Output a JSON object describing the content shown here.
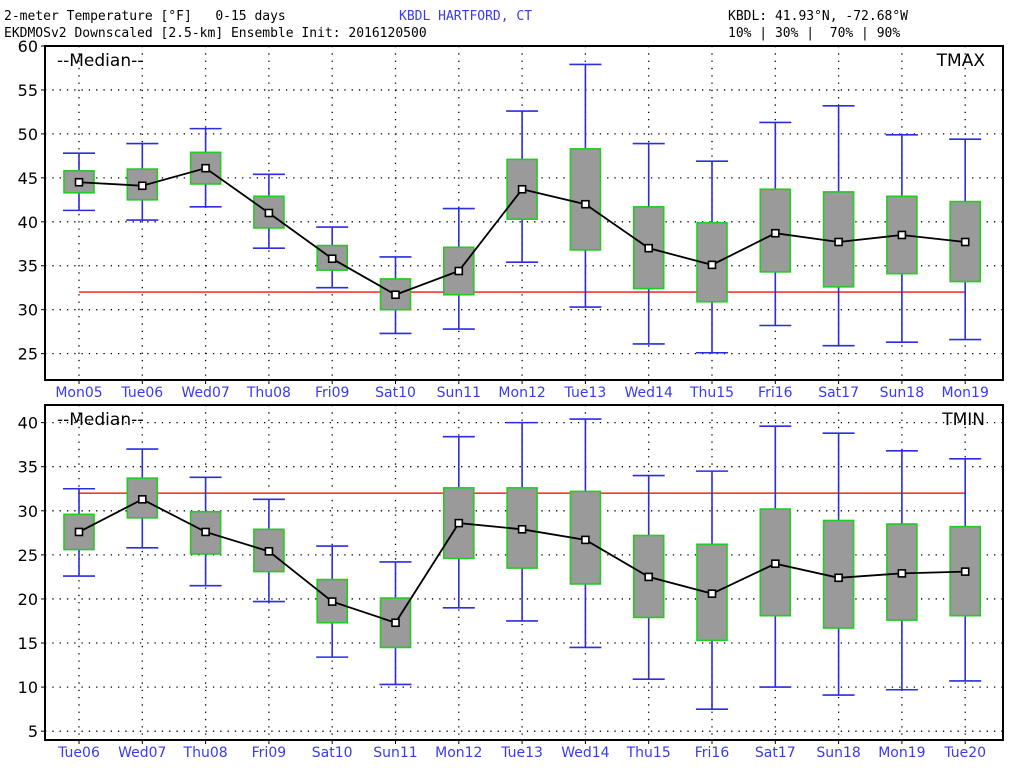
{
  "header": {
    "title_left": "2-meter Temperature [°F]   0-15 days",
    "station": "KBDL HARTFORD, CT",
    "coords": "KBDL: 41.93°N, -72.68°W",
    "model": "EKDMOSv2 Downscaled [2.5-km] Ensemble Init: 2016120500",
    "percentiles": "10% | 30% |  70% | 90%"
  },
  "colors": {
    "whisker": "#2c2ce0",
    "box_fill": "#9a9a9a",
    "box_stroke": "#22cc22",
    "median": "#000000",
    "freezing": "#ff3333",
    "axis_label": "#3a3af0"
  },
  "chart_data": [
    {
      "type": "box",
      "legend": "--Median--",
      "panel_label": "TMAX",
      "ylim": [
        22,
        60
      ],
      "yticks": [
        25,
        30,
        35,
        40,
        45,
        50,
        55,
        60
      ],
      "freezing_line": 32,
      "grid": true,
      "categories": [
        "Mon05",
        "Tue06",
        "Wed07",
        "Thu08",
        "Fri09",
        "Sat10",
        "Sun11",
        "Mon12",
        "Tue13",
        "Wed14",
        "Thu15",
        "Fri16",
        "Sat17",
        "Sun18",
        "Mon19"
      ],
      "p10": [
        41.3,
        40.2,
        41.7,
        37.0,
        32.5,
        27.3,
        27.8,
        35.4,
        30.3,
        26.1,
        25.1,
        28.2,
        25.9,
        26.3,
        26.6
      ],
      "p30": [
        43.3,
        42.5,
        44.3,
        39.3,
        34.5,
        30.0,
        31.7,
        40.3,
        36.8,
        32.4,
        30.9,
        34.3,
        32.6,
        34.1,
        33.2
      ],
      "median": [
        44.5,
        44.1,
        46.1,
        41.0,
        35.8,
        31.7,
        34.4,
        43.7,
        42.0,
        37.0,
        35.1,
        38.7,
        37.7,
        38.5,
        37.7
      ],
      "p70": [
        45.8,
        46.0,
        47.9,
        42.9,
        37.3,
        33.5,
        37.1,
        47.1,
        48.3,
        41.7,
        39.9,
        43.7,
        43.4,
        42.9,
        42.3
      ],
      "p90": [
        47.8,
        48.9,
        50.6,
        45.4,
        39.4,
        36.0,
        41.5,
        52.6,
        57.9,
        48.9,
        46.9,
        51.3,
        53.2,
        49.9,
        49.4
      ]
    },
    {
      "type": "box",
      "legend": "--Median--",
      "panel_label": "TMIN",
      "ylim": [
        4,
        42
      ],
      "yticks": [
        5,
        10,
        15,
        20,
        25,
        30,
        35,
        40
      ],
      "freezing_line": 32,
      "grid": true,
      "categories": [
        "Tue06",
        "Wed07",
        "Thu08",
        "Fri09",
        "Sat10",
        "Sun11",
        "Mon12",
        "Tue13",
        "Wed14",
        "Thu15",
        "Fri16",
        "Sat17",
        "Sun18",
        "Mon19",
        "Tue20"
      ],
      "p10": [
        22.6,
        25.8,
        21.5,
        19.7,
        13.4,
        10.3,
        19.0,
        17.5,
        14.5,
        10.9,
        7.5,
        10.0,
        9.1,
        9.7,
        10.7
      ],
      "p30": [
        25.6,
        29.2,
        25.1,
        23.1,
        17.3,
        14.5,
        24.6,
        23.5,
        21.7,
        17.9,
        15.3,
        18.1,
        16.7,
        17.6,
        18.1
      ],
      "median": [
        27.6,
        31.3,
        27.6,
        25.4,
        19.7,
        17.3,
        28.6,
        27.9,
        26.7,
        22.5,
        20.6,
        24.0,
        22.4,
        22.9,
        23.1
      ],
      "p70": [
        29.6,
        33.7,
        29.9,
        27.9,
        22.2,
        20.1,
        32.6,
        32.6,
        32.2,
        27.2,
        26.2,
        30.2,
        28.9,
        28.5,
        28.2
      ],
      "p90": [
        32.5,
        37.0,
        33.8,
        31.3,
        26.0,
        24.2,
        38.4,
        40.0,
        40.4,
        34.0,
        34.5,
        39.6,
        38.8,
        36.8,
        35.9
      ]
    }
  ]
}
